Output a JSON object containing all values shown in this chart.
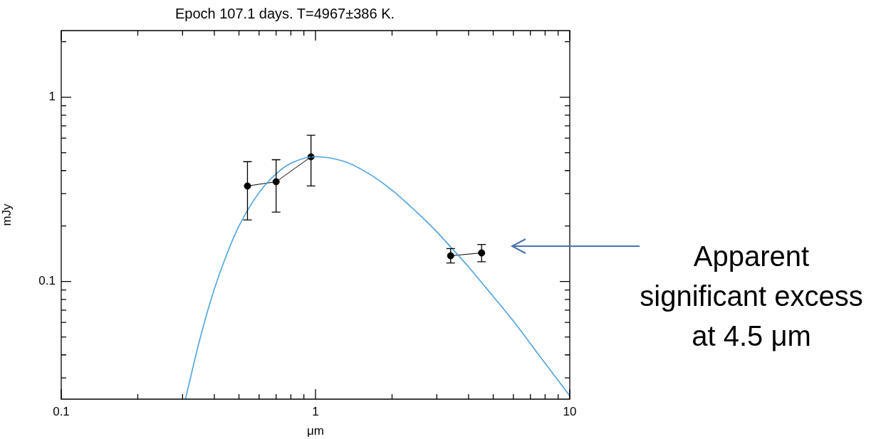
{
  "chart_data": {
    "type": "line",
    "title": "Epoch 107.1 days. T=4967±386 K.",
    "xlabel": "μm",
    "ylabel": "mJy",
    "annotations": [
      "Apparent significant excess at 4.5 μm"
    ],
    "log": "xy",
    "grid": false,
    "legend": false,
    "marker": "circle",
    "line_style": "solid",
    "xlim": [
      0.1,
      10
    ],
    "ylim": [
      0.023,
      2.3
    ],
    "xticks": [
      0.1,
      {
        "value": 0.2,
        "label": null
      },
      {
        "value": 0.3,
        "label": null
      },
      {
        "value": 0.4,
        "label": null
      },
      {
        "value": 0.5,
        "label": null
      },
      {
        "value": 0.6,
        "label": null
      },
      {
        "value": 0.7,
        "label": null
      },
      {
        "value": 0.8,
        "label": null
      },
      {
        "value": 0.9,
        "label": null
      },
      1,
      {
        "value": 2,
        "label": null
      },
      {
        "value": 3,
        "label": null
      },
      {
        "value": 4,
        "label": null
      },
      {
        "value": 5,
        "label": null
      },
      {
        "value": 6,
        "label": null
      },
      {
        "value": 7,
        "label": null
      },
      {
        "value": 8,
        "label": null
      },
      {
        "value": 9,
        "label": null
      },
      10
    ],
    "yticks": [
      {
        "value": 0.03,
        "label": null
      },
      {
        "value": 0.04,
        "label": null
      },
      {
        "value": 0.05,
        "label": null
      },
      {
        "value": 0.06,
        "label": null
      },
      {
        "value": 0.07,
        "label": null
      },
      {
        "value": 0.08,
        "label": null
      },
      {
        "value": 0.09,
        "label": null
      },
      0.1,
      {
        "value": 0.2,
        "label": null
      },
      {
        "value": 0.3,
        "label": null
      },
      {
        "value": 0.4,
        "label": null
      },
      {
        "value": 0.5,
        "label": null
      },
      {
        "value": 0.6,
        "label": null
      },
      {
        "value": 0.7,
        "label": null
      },
      {
        "value": 0.8,
        "label": null
      },
      {
        "value": 0.9,
        "label": null
      },
      1,
      {
        "value": 2,
        "label": null
      }
    ],
    "series": [
      {
        "type": "line",
        "color": "#4da3e0",
        "marker": "none",
        "x": [
          0.308,
          0.35,
          0.4,
          0.45,
          0.5,
          0.6,
          0.7,
          0.8,
          1.0,
          1.3,
          1.6,
          2,
          2.5,
          3,
          3.4,
          4,
          5,
          6,
          8,
          10
        ],
        "values": [
          0.023,
          0.048,
          0.091,
          0.143,
          0.2,
          0.304,
          0.384,
          0.438,
          0.476,
          0.448,
          0.389,
          0.313,
          0.238,
          0.186,
          0.154,
          0.12,
          0.083,
          0.061,
          0.036,
          0.024
        ]
      },
      {
        "color": "#000000",
        "x": [
          0.54,
          0.7,
          0.96
        ],
        "values": [
          0.33,
          0.348,
          0.475
        ],
        "errors": [
          [
            0.216,
            0.447
          ],
          [
            0.238,
            0.458
          ],
          [
            0.33,
            0.622
          ]
        ]
      },
      {
        "color": "#000000",
        "x": [
          3.4,
          4.5
        ],
        "values": [
          0.138,
          0.143
        ],
        "errors": [
          [
            0.126,
            0.151
          ],
          [
            0.128,
            0.159
          ]
        ]
      }
    ]
  }
}
